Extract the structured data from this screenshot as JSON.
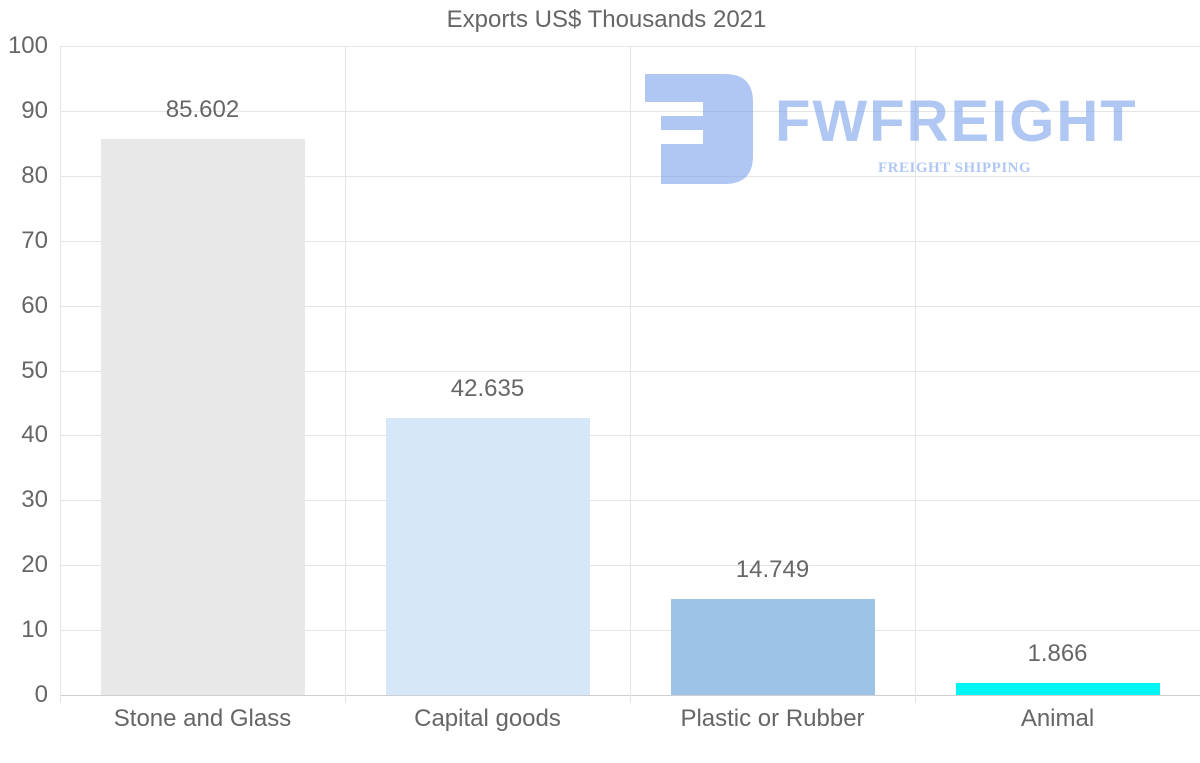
{
  "chart_data": {
    "type": "bar",
    "title": "Exports US$ Thousands 2021",
    "xlabel": "",
    "ylabel": "",
    "categories": [
      "Stone and Glass",
      "Capital goods",
      "Plastic or Rubber",
      "Animal"
    ],
    "values": [
      85.602,
      42.635,
      14.749,
      1.866
    ],
    "value_labels": [
      "85.602",
      "42.635",
      "14.749",
      "1.866"
    ],
    "colors": [
      "#e8e8e8",
      "#d6e7f8",
      "#9dc3e6",
      "#00f5f5"
    ],
    "ylim": [
      0,
      100
    ],
    "yticks": [
      "100",
      "90",
      "80",
      "70",
      "60",
      "50",
      "40",
      "30",
      "20",
      "10",
      "0"
    ],
    "grid": true,
    "legend": "none"
  },
  "watermark": {
    "brand": "FWFREIGHT",
    "tagline": "FREIGHT SHIPPING",
    "color": "#6f9be8"
  }
}
